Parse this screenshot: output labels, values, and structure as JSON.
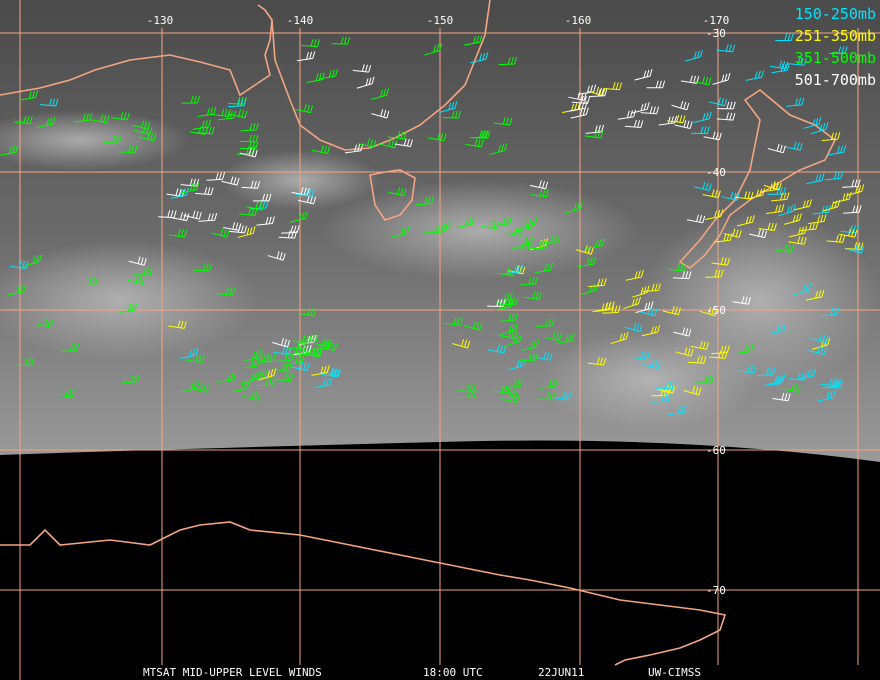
{
  "map": {
    "longitude_labels": [
      "-130",
      "-140",
      "-150",
      "-160",
      "-170"
    ],
    "latitude_labels": [
      "-30",
      "-40",
      "-50",
      "-60",
      "-70"
    ]
  },
  "legend": [
    {
      "label": "150-250mb",
      "color": "#00e5ff"
    },
    {
      "label": "251-350mb",
      "color": "#ffff00"
    },
    {
      "label": "351-500mb",
      "color": "#00ff00"
    },
    {
      "label": "501-700mb",
      "color": "#ffffff"
    }
  ],
  "footer": {
    "product": "MTSAT MID-UPPER LEVEL WINDS",
    "time": "18:00 UTC",
    "date": "22JUN11",
    "source": "UW-CIMSS"
  }
}
